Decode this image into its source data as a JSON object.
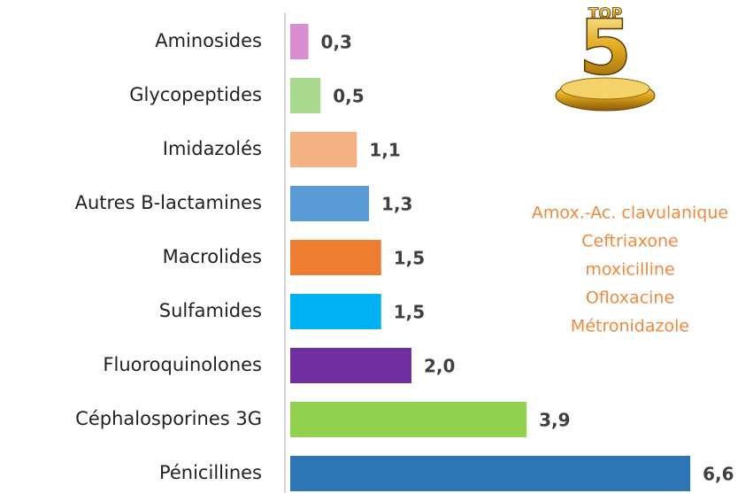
{
  "chart_data": {
    "type": "bar",
    "orientation": "horizontal",
    "categories": [
      "Aminosides",
      "Glycopeptides",
      "Imidazolés",
      "Autres B-lactamines",
      "Macrolides",
      "Sulfamides",
      "Fluoroquinolones",
      "Céphalosporines 3G",
      "Pénicillines"
    ],
    "values": [
      0.3,
      0.5,
      1.1,
      1.3,
      1.5,
      1.5,
      2.0,
      3.9,
      6.6
    ],
    "value_labels": [
      "0,3",
      "0,5",
      "1,1",
      "1,3",
      "1,5",
      "1,5",
      "2,0",
      "3,9",
      "6,6"
    ],
    "colors": [
      "#d98fcf",
      "#a9d88f",
      "#f4b183",
      "#5b9bd5",
      "#ed7d31",
      "#00b0f0",
      "#7030a0",
      "#92d050",
      "#2e75b6"
    ],
    "badge": [
      "TOP",
      "5"
    ],
    "top_list": [
      "Amox.-Ac. clavulanique",
      "Ceftriaxone",
      "moxicilline",
      "Ofloxacine",
      "Métronidazole"
    ],
    "top_list_color": "#f0883e"
  }
}
